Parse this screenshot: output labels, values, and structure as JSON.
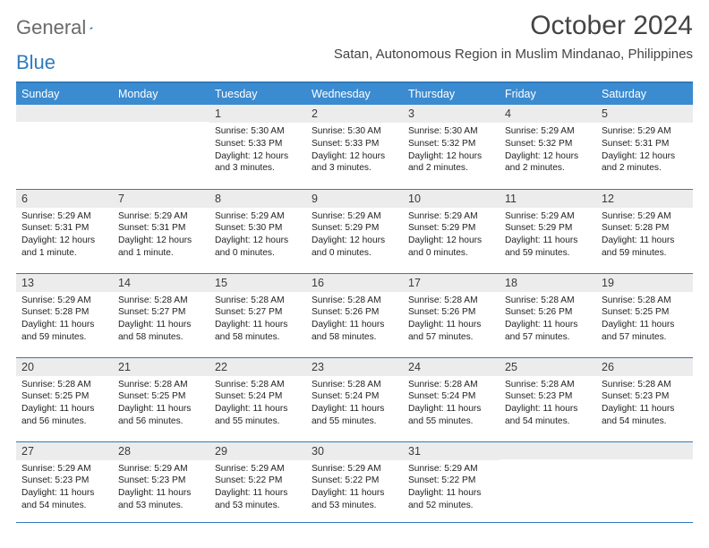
{
  "logo": {
    "text1": "General",
    "text2": "Blue",
    "accent_color": "#2f7bbf",
    "gray_color": "#6a6a6a"
  },
  "title": "October 2024",
  "location": "Satan, Autonomous Region in Muslim Mindanao, Philippines",
  "header_bg": "#3b8bd0",
  "border_color": "#2f7bbf",
  "daynum_bg": "#ececec",
  "weekdays": [
    "Sunday",
    "Monday",
    "Tuesday",
    "Wednesday",
    "Thursday",
    "Friday",
    "Saturday"
  ],
  "weeks": [
    [
      {
        "n": "",
        "lines": []
      },
      {
        "n": "",
        "lines": []
      },
      {
        "n": "1",
        "lines": [
          "Sunrise: 5:30 AM",
          "Sunset: 5:33 PM",
          "Daylight: 12 hours and 3 minutes."
        ]
      },
      {
        "n": "2",
        "lines": [
          "Sunrise: 5:30 AM",
          "Sunset: 5:33 PM",
          "Daylight: 12 hours and 3 minutes."
        ]
      },
      {
        "n": "3",
        "lines": [
          "Sunrise: 5:30 AM",
          "Sunset: 5:32 PM",
          "Daylight: 12 hours and 2 minutes."
        ]
      },
      {
        "n": "4",
        "lines": [
          "Sunrise: 5:29 AM",
          "Sunset: 5:32 PM",
          "Daylight: 12 hours and 2 minutes."
        ]
      },
      {
        "n": "5",
        "lines": [
          "Sunrise: 5:29 AM",
          "Sunset: 5:31 PM",
          "Daylight: 12 hours and 2 minutes."
        ]
      }
    ],
    [
      {
        "n": "6",
        "lines": [
          "Sunrise: 5:29 AM",
          "Sunset: 5:31 PM",
          "Daylight: 12 hours and 1 minute."
        ]
      },
      {
        "n": "7",
        "lines": [
          "Sunrise: 5:29 AM",
          "Sunset: 5:31 PM",
          "Daylight: 12 hours and 1 minute."
        ]
      },
      {
        "n": "8",
        "lines": [
          "Sunrise: 5:29 AM",
          "Sunset: 5:30 PM",
          "Daylight: 12 hours and 0 minutes."
        ]
      },
      {
        "n": "9",
        "lines": [
          "Sunrise: 5:29 AM",
          "Sunset: 5:29 PM",
          "Daylight: 12 hours and 0 minutes."
        ]
      },
      {
        "n": "10",
        "lines": [
          "Sunrise: 5:29 AM",
          "Sunset: 5:29 PM",
          "Daylight: 12 hours and 0 minutes."
        ]
      },
      {
        "n": "11",
        "lines": [
          "Sunrise: 5:29 AM",
          "Sunset: 5:29 PM",
          "Daylight: 11 hours and 59 minutes."
        ]
      },
      {
        "n": "12",
        "lines": [
          "Sunrise: 5:29 AM",
          "Sunset: 5:28 PM",
          "Daylight: 11 hours and 59 minutes."
        ]
      }
    ],
    [
      {
        "n": "13",
        "lines": [
          "Sunrise: 5:29 AM",
          "Sunset: 5:28 PM",
          "Daylight: 11 hours and 59 minutes."
        ]
      },
      {
        "n": "14",
        "lines": [
          "Sunrise: 5:28 AM",
          "Sunset: 5:27 PM",
          "Daylight: 11 hours and 58 minutes."
        ]
      },
      {
        "n": "15",
        "lines": [
          "Sunrise: 5:28 AM",
          "Sunset: 5:27 PM",
          "Daylight: 11 hours and 58 minutes."
        ]
      },
      {
        "n": "16",
        "lines": [
          "Sunrise: 5:28 AM",
          "Sunset: 5:26 PM",
          "Daylight: 11 hours and 58 minutes."
        ]
      },
      {
        "n": "17",
        "lines": [
          "Sunrise: 5:28 AM",
          "Sunset: 5:26 PM",
          "Daylight: 11 hours and 57 minutes."
        ]
      },
      {
        "n": "18",
        "lines": [
          "Sunrise: 5:28 AM",
          "Sunset: 5:26 PM",
          "Daylight: 11 hours and 57 minutes."
        ]
      },
      {
        "n": "19",
        "lines": [
          "Sunrise: 5:28 AM",
          "Sunset: 5:25 PM",
          "Daylight: 11 hours and 57 minutes."
        ]
      }
    ],
    [
      {
        "n": "20",
        "lines": [
          "Sunrise: 5:28 AM",
          "Sunset: 5:25 PM",
          "Daylight: 11 hours and 56 minutes."
        ]
      },
      {
        "n": "21",
        "lines": [
          "Sunrise: 5:28 AM",
          "Sunset: 5:25 PM",
          "Daylight: 11 hours and 56 minutes."
        ]
      },
      {
        "n": "22",
        "lines": [
          "Sunrise: 5:28 AM",
          "Sunset: 5:24 PM",
          "Daylight: 11 hours and 55 minutes."
        ]
      },
      {
        "n": "23",
        "lines": [
          "Sunrise: 5:28 AM",
          "Sunset: 5:24 PM",
          "Daylight: 11 hours and 55 minutes."
        ]
      },
      {
        "n": "24",
        "lines": [
          "Sunrise: 5:28 AM",
          "Sunset: 5:24 PM",
          "Daylight: 11 hours and 55 minutes."
        ]
      },
      {
        "n": "25",
        "lines": [
          "Sunrise: 5:28 AM",
          "Sunset: 5:23 PM",
          "Daylight: 11 hours and 54 minutes."
        ]
      },
      {
        "n": "26",
        "lines": [
          "Sunrise: 5:28 AM",
          "Sunset: 5:23 PM",
          "Daylight: 11 hours and 54 minutes."
        ]
      }
    ],
    [
      {
        "n": "27",
        "lines": [
          "Sunrise: 5:29 AM",
          "Sunset: 5:23 PM",
          "Daylight: 11 hours and 54 minutes."
        ]
      },
      {
        "n": "28",
        "lines": [
          "Sunrise: 5:29 AM",
          "Sunset: 5:23 PM",
          "Daylight: 11 hours and 53 minutes."
        ]
      },
      {
        "n": "29",
        "lines": [
          "Sunrise: 5:29 AM",
          "Sunset: 5:22 PM",
          "Daylight: 11 hours and 53 minutes."
        ]
      },
      {
        "n": "30",
        "lines": [
          "Sunrise: 5:29 AM",
          "Sunset: 5:22 PM",
          "Daylight: 11 hours and 53 minutes."
        ]
      },
      {
        "n": "31",
        "lines": [
          "Sunrise: 5:29 AM",
          "Sunset: 5:22 PM",
          "Daylight: 11 hours and 52 minutes."
        ]
      },
      {
        "n": "",
        "lines": []
      },
      {
        "n": "",
        "lines": []
      }
    ]
  ]
}
